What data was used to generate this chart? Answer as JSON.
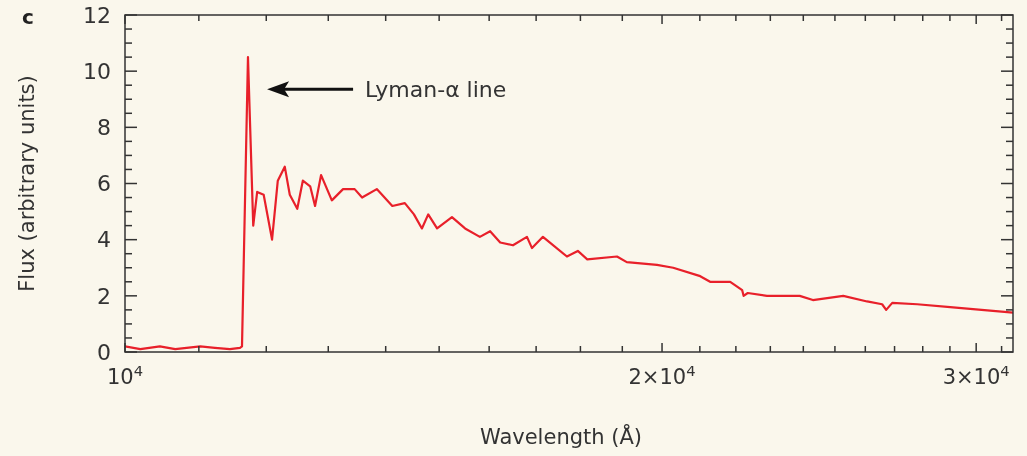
{
  "chart_data": {
    "type": "line",
    "title": "c",
    "xlabel": "Wavelength (Å)",
    "ylabel": "Flux (arbitrary units)",
    "log": "x",
    "xlim": [
      10000,
      31460
    ],
    "ylim": [
      0,
      12
    ],
    "xticks": [
      {
        "value": 10000,
        "label": "10$^{4}$"
      },
      {
        "value": 11000,
        "label": null
      },
      {
        "value": 12000,
        "label": null
      },
      {
        "value": 13000,
        "label": null
      },
      {
        "value": 14000,
        "label": null
      },
      {
        "value": 15000,
        "label": null
      },
      {
        "value": 16000,
        "label": null
      },
      {
        "value": 17000,
        "label": null
      },
      {
        "value": 18000,
        "label": null
      },
      {
        "value": 19000,
        "label": null
      },
      {
        "value": 20000,
        "label": "2×10$^{4}$"
      },
      {
        "value": 21000,
        "label": null
      },
      {
        "value": 22000,
        "label": null
      },
      {
        "value": 23000,
        "label": null
      },
      {
        "value": 24000,
        "label": null
      },
      {
        "value": 25000,
        "label": null
      },
      {
        "value": 26000,
        "label": null
      },
      {
        "value": 27000,
        "label": null
      },
      {
        "value": 28000,
        "label": null
      },
      {
        "value": 29000,
        "label": null
      },
      {
        "value": 30000,
        "label": "3×10$^{4}$"
      },
      {
        "value": 31000,
        "label": null
      }
    ],
    "yticks": [
      0,
      {
        "value": 0.5,
        "label": null
      },
      {
        "value": 1,
        "label": null
      },
      {
        "value": 1.5,
        "label": null
      },
      2,
      {
        "value": 2.5,
        "label": null
      },
      {
        "value": 3,
        "label": null
      },
      {
        "value": 3.5,
        "label": null
      },
      4,
      {
        "value": 4.5,
        "label": null
      },
      {
        "value": 5,
        "label": null
      },
      {
        "value": 5.5,
        "label": null
      },
      6,
      {
        "value": 6.5,
        "label": null
      },
      {
        "value": 7,
        "label": null
      },
      {
        "value": 7.5,
        "label": null
      },
      8,
      {
        "value": 8.5,
        "label": null
      },
      {
        "value": 9,
        "label": null
      },
      {
        "value": 9.5,
        "label": null
      },
      10,
      {
        "value": 10.5,
        "label": null
      },
      {
        "value": 11,
        "label": null
      },
      {
        "value": 11.5,
        "label": null
      },
      12
    ],
    "grid": false,
    "marker": "none",
    "line_style": "solid",
    "annotations": [
      "Lyman-α line"
    ],
    "series": [
      {
        "color": "#e8202a",
        "x": [
          10000,
          10200,
          10460,
          10670,
          11020,
          11230,
          11450,
          11600,
          11630,
          11720,
          11800,
          11860,
          11960,
          12090,
          12180,
          12290,
          12370,
          12490,
          12580,
          12700,
          12780,
          12880,
          13060,
          13250,
          13450,
          13580,
          13840,
          14120,
          14350,
          14520,
          14670,
          14790,
          14960,
          15250,
          15510,
          15810,
          16020,
          16230,
          16500,
          16800,
          16910,
          17150,
          17690,
          17940,
          18160,
          18870,
          19110,
          19870,
          20290,
          21010,
          21280,
          21840,
          22180,
          22220,
          22340,
          22900,
          23890,
          24300,
          25270,
          26060,
          26570,
          26710,
          26920,
          27800,
          29010,
          31460
        ],
        "values": [
          0.2,
          0.1,
          0.2,
          0.1,
          0.2,
          0.15,
          0.1,
          0.15,
          0.2,
          10.5,
          4.5,
          5.7,
          5.6,
          4.0,
          6.1,
          6.6,
          5.6,
          5.1,
          6.1,
          5.9,
          5.2,
          6.3,
          5.4,
          5.8,
          5.8,
          5.5,
          5.8,
          5.2,
          5.3,
          4.9,
          4.4,
          4.9,
          4.4,
          4.8,
          4.4,
          4.1,
          4.3,
          3.9,
          3.8,
          4.1,
          3.7,
          4.1,
          3.4,
          3.6,
          3.3,
          3.4,
          3.2,
          3.1,
          3.0,
          2.7,
          2.5,
          2.5,
          2.2,
          2.0,
          2.1,
          2.0,
          2.0,
          1.85,
          2.0,
          1.8,
          1.7,
          1.5,
          1.75,
          1.7,
          1.6,
          1.4
        ]
      }
    ]
  }
}
